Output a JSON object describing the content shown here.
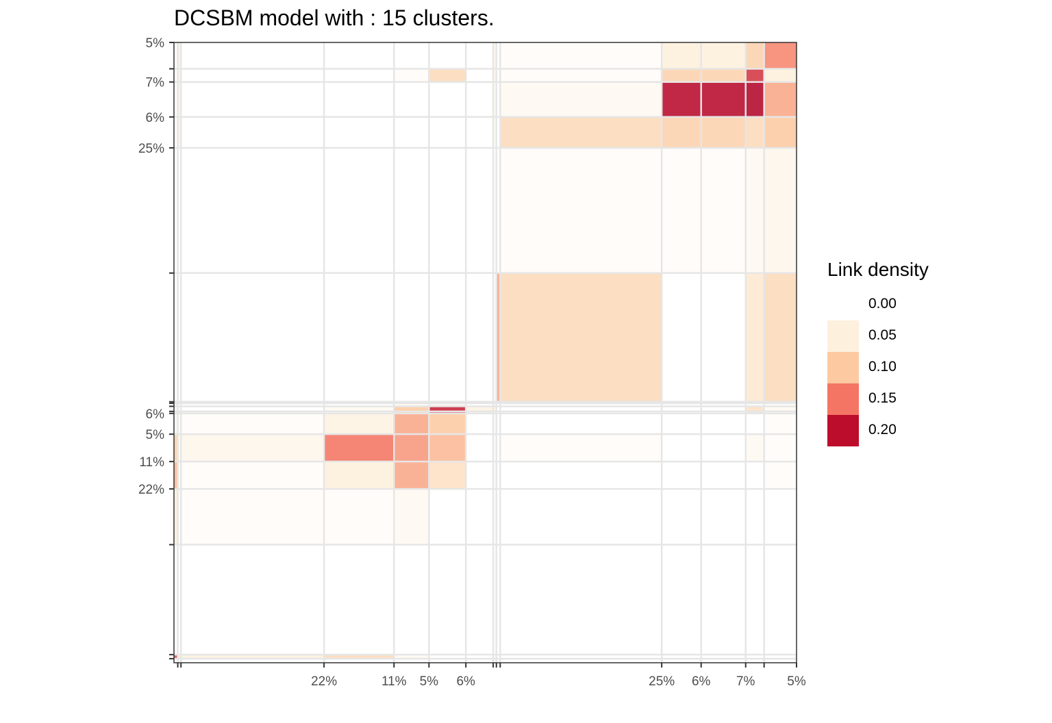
{
  "chart_data": {
    "type": "heatmap",
    "title": "DCSBM model with : 15 clusters.",
    "legend": {
      "title": "Link density",
      "position": "right",
      "entries": [
        {
          "label": "0.00",
          "color": "#ffffff"
        },
        {
          "label": "0.05",
          "color": "#fdf0dc"
        },
        {
          "label": "0.10",
          "color": "#fcc9a1"
        },
        {
          "label": "0.15",
          "color": "#f47563"
        },
        {
          "label": "0.20",
          "color": "#bd0d2c"
        }
      ]
    },
    "grid": true,
    "bipartite_blocks": {
      "row_sizes_pct": [
        5.2,
        2.6,
        6.9,
        6.1,
        24.7,
        25.4,
        0.3,
        0.6,
        1.0,
        0.4,
        4.1,
        5.4,
        5.4,
        11.0,
        21.7,
        0.8,
        0.8
      ],
      "col_sizes_pct": [
        0.6,
        0.5,
        22.5,
        11.0,
        5.5,
        5.8,
        4.3,
        0.5,
        0.6,
        25.4,
        6.2,
        7.0,
        2.9,
        5.1
      ],
      "row_tick_labels": [
        "5%",
        "",
        "7%",
        "6%",
        "25%",
        "",
        "",
        "",
        "",
        "",
        "6%",
        "5%",
        "11%",
        "22%",
        "",
        "",
        ""
      ],
      "col_tick_labels": [
        "",
        "",
        "22%",
        "11%",
        "5%",
        "6%",
        "",
        "",
        "",
        "25%",
        "6%",
        "7%",
        "",
        "5%"
      ],
      "col_label_tick_index": [
        1,
        2,
        3,
        4,
        5,
        6,
        7,
        8,
        9,
        10,
        11,
        12,
        13,
        14
      ],
      "cells": [
        {
          "r": 0,
          "c": 0,
          "v": 0.0
        },
        {
          "r": 0,
          "c": 1,
          "v": 0.04
        },
        {
          "r": 0,
          "c": 9,
          "v": 0.01
        },
        {
          "r": 0,
          "c": 10,
          "v": 0.05
        },
        {
          "r": 0,
          "c": 11,
          "v": 0.05
        },
        {
          "r": 0,
          "c": 12,
          "v": 0.09
        },
        {
          "r": 0,
          "c": 13,
          "v": 0.14
        },
        {
          "r": 0,
          "c": 7,
          "v": 0.03
        },
        {
          "r": 1,
          "c": 1,
          "v": 0.04
        },
        {
          "r": 1,
          "c": 5,
          "v": 0.08
        },
        {
          "r": 1,
          "c": 7,
          "v": 0.03
        },
        {
          "r": 1,
          "c": 9,
          "v": 0.01
        },
        {
          "r": 1,
          "c": 10,
          "v": 0.09
        },
        {
          "r": 1,
          "c": 11,
          "v": 0.09
        },
        {
          "r": 1,
          "c": 12,
          "v": 0.18
        },
        {
          "r": 1,
          "c": 13,
          "v": 0.05
        },
        {
          "r": 1,
          "c": 4,
          "v": 0.01
        },
        {
          "r": 2,
          "c": 1,
          "v": 0.04
        },
        {
          "r": 2,
          "c": 7,
          "v": 0.02
        },
        {
          "r": 2,
          "c": 9,
          "v": 0.02
        },
        {
          "r": 2,
          "c": 10,
          "v": 0.21
        },
        {
          "r": 2,
          "c": 11,
          "v": 0.21
        },
        {
          "r": 2,
          "c": 12,
          "v": 0.22
        },
        {
          "r": 2,
          "c": 13,
          "v": 0.12
        },
        {
          "r": 3,
          "c": 1,
          "v": 0.04
        },
        {
          "r": 3,
          "c": 7,
          "v": 0.02
        },
        {
          "r": 3,
          "c": 9,
          "v": 0.08
        },
        {
          "r": 3,
          "c": 10,
          "v": 0.09
        },
        {
          "r": 3,
          "c": 11,
          "v": 0.09
        },
        {
          "r": 3,
          "c": 12,
          "v": 0.08
        },
        {
          "r": 3,
          "c": 13,
          "v": 0.1
        },
        {
          "r": 4,
          "c": 9,
          "v": 0.01
        },
        {
          "r": 4,
          "c": 10,
          "v": 0.01
        },
        {
          "r": 4,
          "c": 11,
          "v": 0.01
        },
        {
          "r": 4,
          "c": 12,
          "v": 0.02
        },
        {
          "r": 4,
          "c": 13,
          "v": 0.03
        },
        {
          "r": 5,
          "c": 8,
          "v": 0.12
        },
        {
          "r": 5,
          "c": 9,
          "v": 0.08
        },
        {
          "r": 5,
          "c": 12,
          "v": 0.06
        },
        {
          "r": 5,
          "c": 13,
          "v": 0.08
        },
        {
          "r": 6,
          "c": 5,
          "v": 0.06
        },
        {
          "r": 6,
          "c": 0,
          "v": 0.06
        },
        {
          "r": 6,
          "c": 12,
          "v": 0.05
        },
        {
          "r": 6,
          "c": 13,
          "v": 0.05
        },
        {
          "r": 7,
          "c": 0,
          "v": 0.05
        },
        {
          "r": 7,
          "c": 4,
          "v": 0.02
        },
        {
          "r": 7,
          "c": 5,
          "v": 0.02
        },
        {
          "r": 8,
          "c": 0,
          "v": 0.02
        },
        {
          "r": 8,
          "c": 3,
          "v": 0.02
        },
        {
          "r": 8,
          "c": 4,
          "v": 0.1
        },
        {
          "r": 8,
          "c": 5,
          "v": 0.19
        },
        {
          "r": 8,
          "c": 6,
          "v": 0.04
        },
        {
          "r": 8,
          "c": 7,
          "v": 0.04
        },
        {
          "r": 8,
          "c": 12,
          "v": 0.07
        },
        {
          "r": 8,
          "c": 13,
          "v": 0.02
        },
        {
          "r": 9,
          "c": 0,
          "v": 0.02
        },
        {
          "r": 9,
          "c": 3,
          "v": 0.02
        },
        {
          "r": 9,
          "c": 4,
          "v": 0.1
        },
        {
          "r": 9,
          "c": 5,
          "v": 0.19
        },
        {
          "r": 9,
          "c": 6,
          "v": 0.04
        },
        {
          "r": 9,
          "c": 7,
          "v": 0.04
        },
        {
          "r": 9,
          "c": 12,
          "v": 0.07
        },
        {
          "r": 9,
          "c": 13,
          "v": 0.02
        },
        {
          "r": 10,
          "c": 0,
          "v": 0.02
        },
        {
          "r": 10,
          "c": 3,
          "v": 0.04
        },
        {
          "r": 10,
          "c": 4,
          "v": 0.12
        },
        {
          "r": 10,
          "c": 5,
          "v": 0.1
        },
        {
          "r": 10,
          "c": 1,
          "v": 0.01
        },
        {
          "r": 10,
          "c": 2,
          "v": 0.01
        },
        {
          "r": 10,
          "c": 13,
          "v": 0.01
        },
        {
          "r": 11,
          "c": 0,
          "v": 0.09
        },
        {
          "r": 11,
          "c": 1,
          "v": 0.02
        },
        {
          "r": 11,
          "c": 2,
          "v": 0.03
        },
        {
          "r": 11,
          "c": 3,
          "v": 0.15
        },
        {
          "r": 11,
          "c": 4,
          "v": 0.13
        },
        {
          "r": 11,
          "c": 5,
          "v": 0.11
        },
        {
          "r": 11,
          "c": 9,
          "v": 0.01
        },
        {
          "r": 11,
          "c": 12,
          "v": 0.02
        },
        {
          "r": 11,
          "c": 13,
          "v": 0.01
        },
        {
          "r": 12,
          "c": 0,
          "v": 0.11
        },
        {
          "r": 12,
          "c": 1,
          "v": 0.02
        },
        {
          "r": 12,
          "c": 2,
          "v": 0.01
        },
        {
          "r": 12,
          "c": 3,
          "v": 0.05
        },
        {
          "r": 12,
          "c": 4,
          "v": 0.12
        },
        {
          "r": 12,
          "c": 5,
          "v": 0.07
        },
        {
          "r": 12,
          "c": 13,
          "v": 0.01
        },
        {
          "r": 13,
          "c": 0,
          "v": 0.05
        },
        {
          "r": 13,
          "c": 1,
          "v": 0.01
        },
        {
          "r": 13,
          "c": 2,
          "v": 0.01
        },
        {
          "r": 13,
          "c": 3,
          "v": 0.01
        },
        {
          "r": 13,
          "c": 4,
          "v": 0.02
        },
        {
          "r": 14,
          "c": 0,
          "v": 0.0
        },
        {
          "r": 15,
          "c": 0,
          "v": 0.17
        },
        {
          "r": 15,
          "c": 1,
          "v": 0.04
        },
        {
          "r": 15,
          "c": 2,
          "v": 0.05
        },
        {
          "r": 15,
          "c": 3,
          "v": 0.08
        },
        {
          "r": 15,
          "c": 4,
          "v": 0.02
        }
      ]
    }
  }
}
